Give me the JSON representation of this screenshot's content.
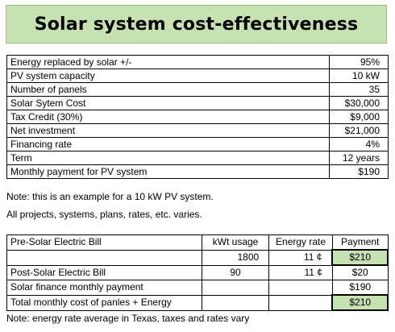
{
  "title": "Solar system cost-effectiveness",
  "summary": [
    {
      "label": "Energy replaced by solar +/-",
      "value": "95%"
    },
    {
      "label": "PV system capacity",
      "value": "10 kW"
    },
    {
      "label": "Number of panels",
      "value": "35"
    },
    {
      "label": "Solar Sytem Cost",
      "value": "$30,000"
    },
    {
      "label": "Tax Credit (30%)",
      "value": "$9,000"
    },
    {
      "label": "Net investment",
      "value": "$21,000"
    },
    {
      "label": "Financing rate",
      "value": "4%"
    },
    {
      "label": "Term",
      "value": "12 years"
    },
    {
      "label": "Monthly payment for  PV system",
      "value": "$190"
    }
  ],
  "notes": [
    "Note: this is an example for a 10 kW PV system.",
    "All projects, systems, plans, rates, etc. varies."
  ],
  "bill_table": {
    "headers": [
      "Pre-Solar Electric Bill",
      "kWt usage",
      "Energy rate",
      "Payment"
    ],
    "pre_row": {
      "usage": "1800",
      "rate": "11 ¢",
      "payment": "$210"
    },
    "post_row": {
      "label": "Post-Solar Electric Bill",
      "usage": "90",
      "rate": "11 ¢",
      "payment": "$20"
    },
    "finance_row": {
      "label": "Solar finance monthly payment",
      "payment": "$190"
    },
    "total_row": {
      "label": "Total monthly cost of panles + Energy",
      "payment": "$210"
    }
  },
  "footer_note": "Note: energy rate average in Texas, taxes and rates vary",
  "colors": {
    "highlight": "#c6e2b0"
  }
}
